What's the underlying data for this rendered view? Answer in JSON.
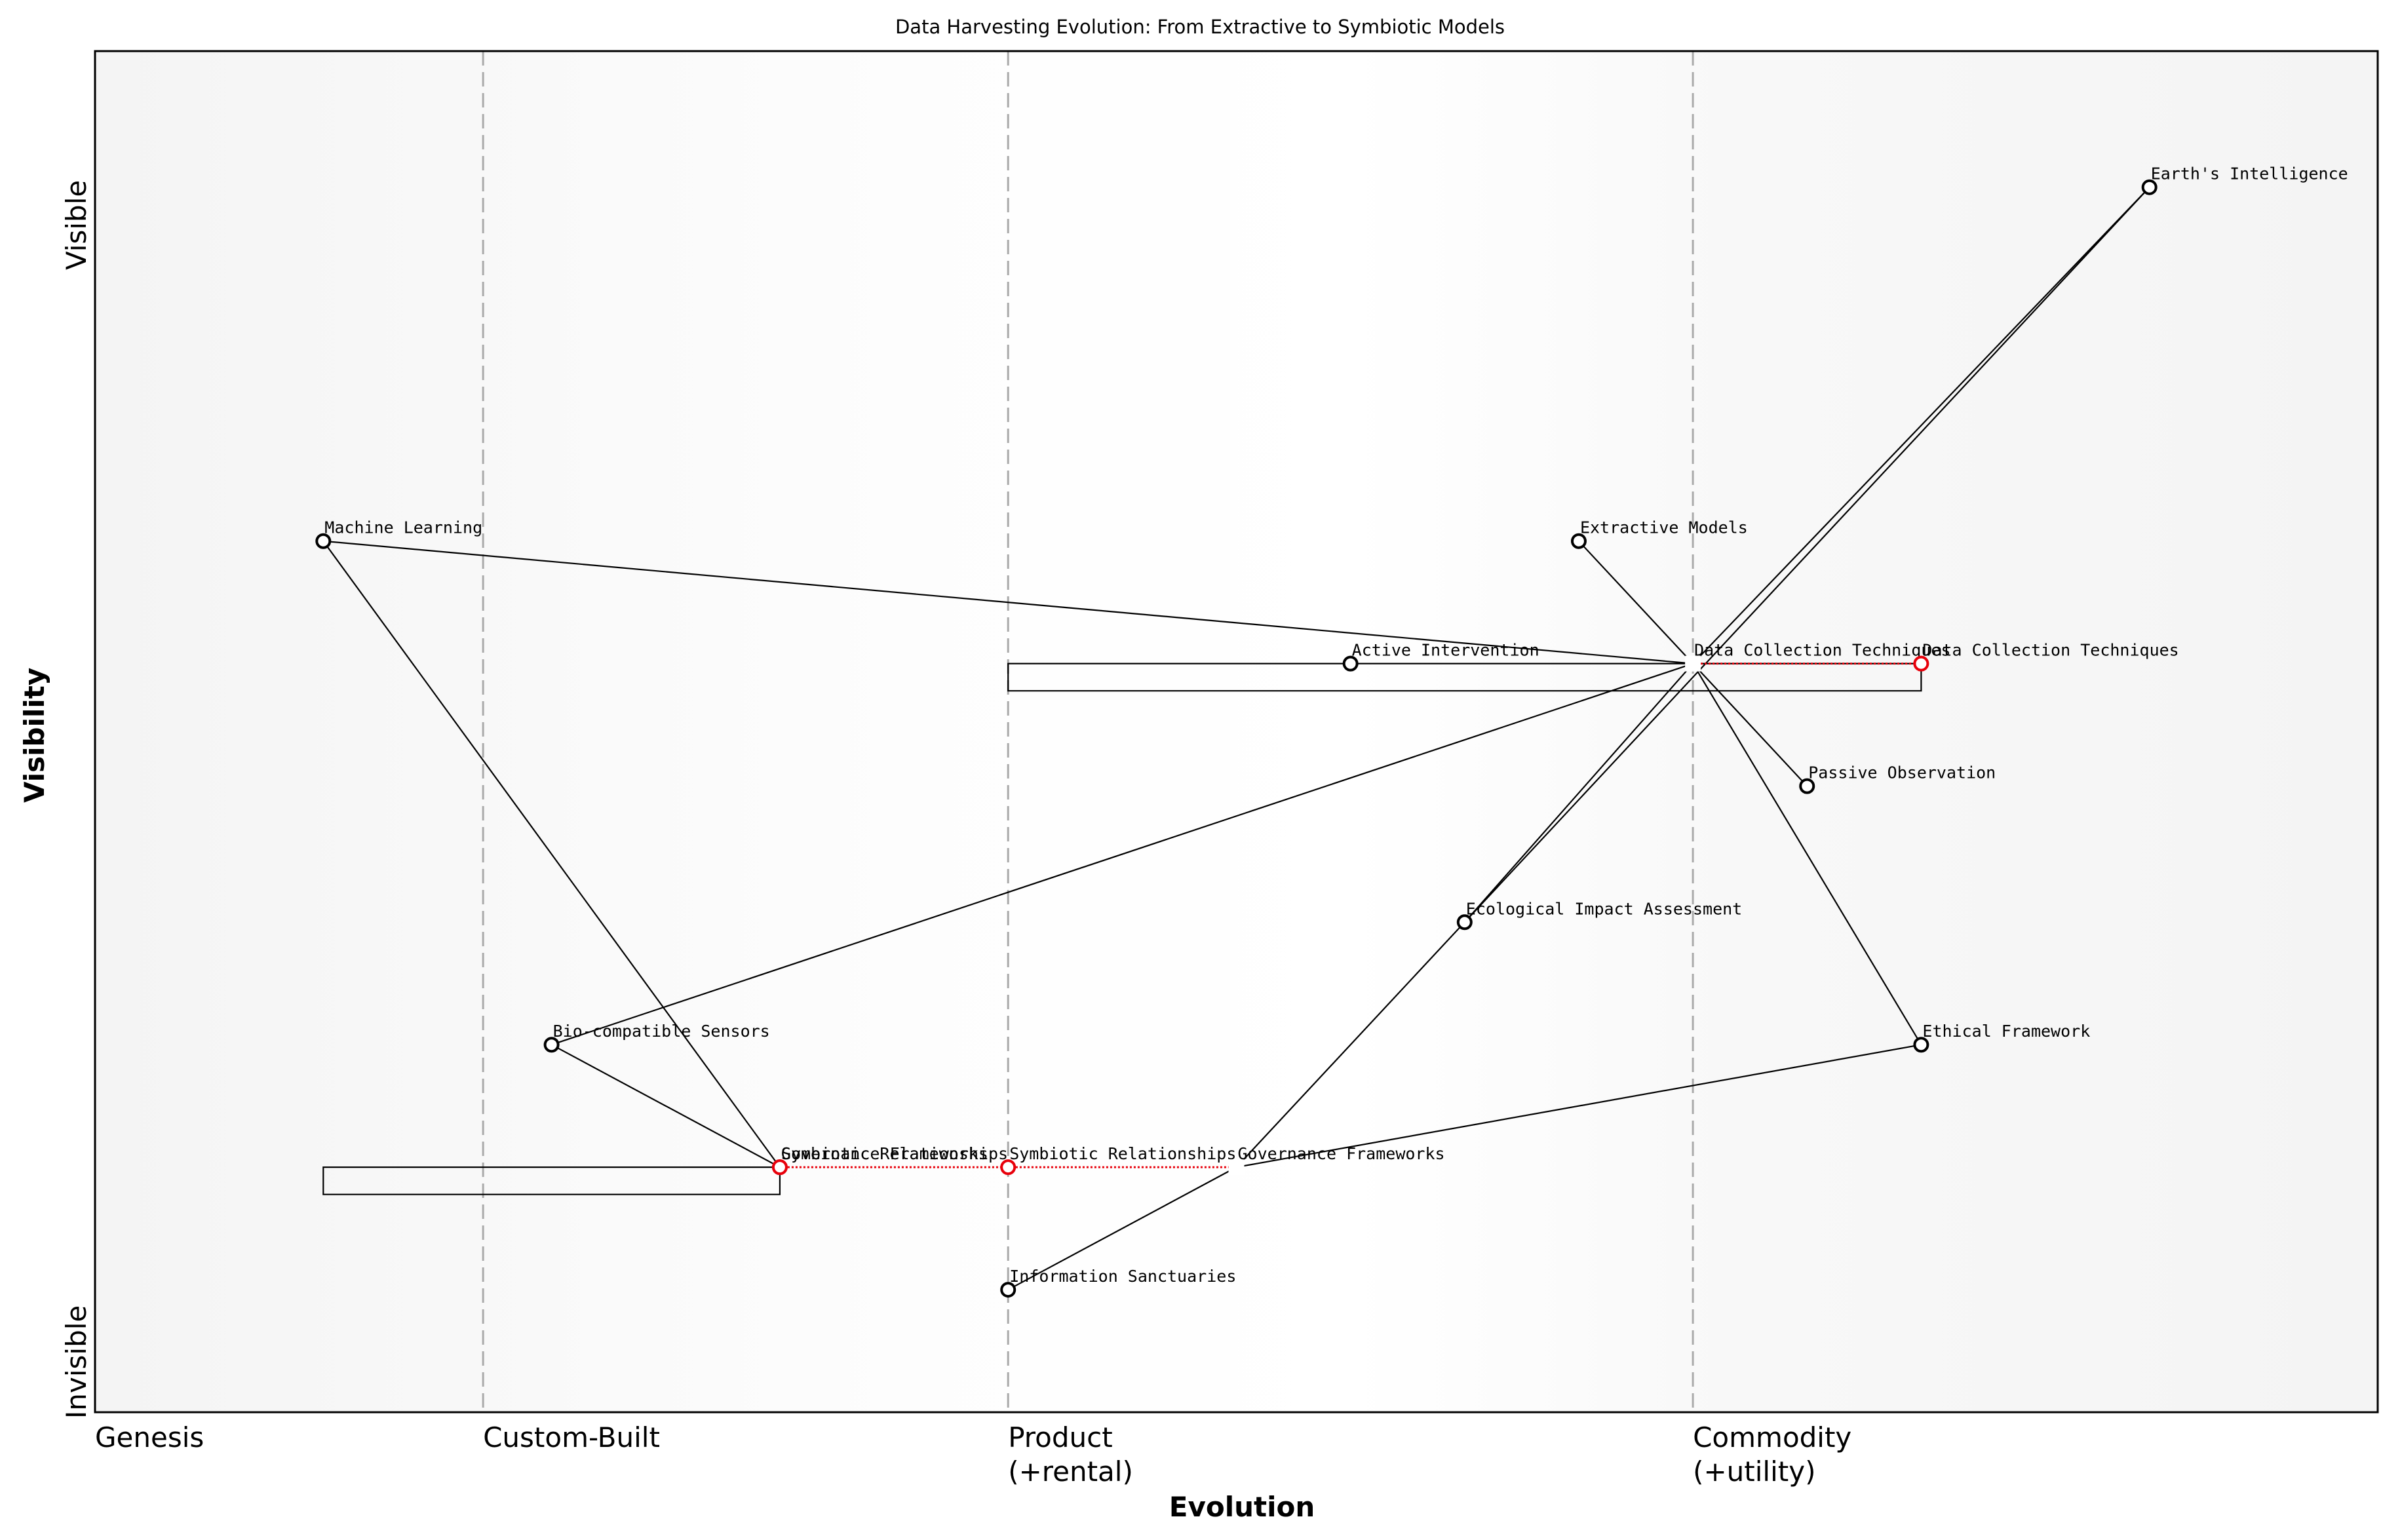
{
  "chart_data": {
    "type": "wardley-map",
    "title": "Data Harvesting Evolution: From Extractive to Symbiotic Models",
    "xlabel": "Evolution",
    "ylabel": "Visibility",
    "y_ticks": [
      "Invisible",
      "Visible"
    ],
    "x_stages": [
      {
        "label": "Genesis",
        "position": 0.0
      },
      {
        "label": "Custom-Built\n",
        "position": 0.17
      },
      {
        "label": "Product\n(+rental)",
        "position": 0.4
      },
      {
        "label": "Commodity\n(+utility)",
        "position": 0.7
      }
    ],
    "xlim": [
      0,
      1
    ],
    "ylim": [
      0,
      1
    ],
    "grid": "vertical dashed stage separators",
    "colors": {
      "node_stroke": "#000000",
      "evolved_node_stroke": "#e8000b",
      "evolution_arrow": "#e8000b",
      "stage_line": "#aaaaaa",
      "background_edge": "#f4f4f4",
      "background_center": "#ffffff"
    },
    "nodes": [
      {
        "id": "earth",
        "label": "Earth's Intelligence",
        "evolution": 0.9,
        "visibility": 0.9,
        "type": "component"
      },
      {
        "id": "ml",
        "label": "Machine Learning",
        "evolution": 0.1,
        "visibility": 0.64,
        "type": "component"
      },
      {
        "id": "extractive",
        "label": "Extractive Models",
        "evolution": 0.65,
        "visibility": 0.64,
        "type": "component"
      },
      {
        "id": "active",
        "label": "Active Intervention",
        "evolution": 0.55,
        "visibility": 0.55,
        "type": "component"
      },
      {
        "id": "dct",
        "label": "Data Collection Techniques",
        "evolution": 0.7,
        "visibility": 0.55,
        "type": "hub"
      },
      {
        "id": "dct_evo",
        "label": "Data Collection Techniques",
        "evolution": 0.8,
        "visibility": 0.55,
        "type": "evolved"
      },
      {
        "id": "passive",
        "label": "Passive Observation",
        "evolution": 0.75,
        "visibility": 0.46,
        "type": "component"
      },
      {
        "id": "eco",
        "label": "Ecological Impact Assessment",
        "evolution": 0.6,
        "visibility": 0.36,
        "type": "component"
      },
      {
        "id": "bio",
        "label": "Bio-compatible Sensors",
        "evolution": 0.2,
        "visibility": 0.27,
        "type": "component"
      },
      {
        "id": "ethical",
        "label": "Ethical Framework",
        "evolution": 0.8,
        "visibility": 0.27,
        "type": "component"
      },
      {
        "id": "gov_evo",
        "label": "Governance Frameworks",
        "evolution": 0.3,
        "visibility": 0.18,
        "type": "evolved"
      },
      {
        "id": "sym_a",
        "label": "Symbiotic Relationships",
        "evolution": 0.3,
        "visibility": 0.18,
        "type": "evolved"
      },
      {
        "id": "sym",
        "label": "Symbiotic Relationships",
        "evolution": 0.4,
        "visibility": 0.18,
        "type": "evolved"
      },
      {
        "id": "gov",
        "label": "Governance Frameworks",
        "evolution": 0.5,
        "visibility": 0.18,
        "type": "hub"
      },
      {
        "id": "sanct",
        "label": "Information Sanctuaries",
        "evolution": 0.4,
        "visibility": 0.09,
        "type": "component"
      }
    ],
    "edges": [
      [
        "ml",
        "dct"
      ],
      [
        "ml",
        "gov_evo"
      ],
      [
        "extractive",
        "dct"
      ],
      [
        "earth",
        "dct"
      ],
      [
        "earth",
        "eco"
      ],
      [
        "dct",
        "passive"
      ],
      [
        "dct",
        "ethical"
      ],
      [
        "dct",
        "bio"
      ],
      [
        "dct",
        "eco"
      ],
      [
        "bio",
        "gov_evo"
      ],
      [
        "eco",
        "gov"
      ],
      [
        "gov",
        "ethical"
      ],
      [
        "gov",
        "sanct"
      ]
    ],
    "evolution_arrows": [
      {
        "from": "dct",
        "to": "dct_evo",
        "style": "dotted",
        "color": "#e8000b"
      },
      {
        "from": "gov_evo",
        "to": "gov",
        "style": "dotted",
        "color": "#e8000b"
      }
    ],
    "brackets": [
      {
        "x_from": 0.4,
        "x_to": 0.8,
        "y_top": 0.55,
        "y_bottom": 0.53
      },
      {
        "x_from": 0.1,
        "x_to": 0.3,
        "y_top": 0.18,
        "y_bottom": 0.16
      }
    ]
  }
}
